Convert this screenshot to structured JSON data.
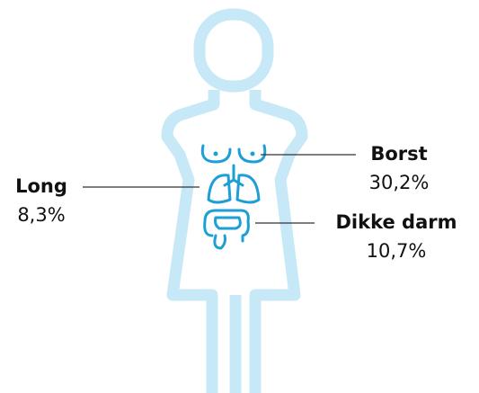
{
  "labels": [
    {
      "name": "Borst",
      "value": "30,2%"
    },
    {
      "name": "Long",
      "value": "8,3%"
    },
    {
      "name": "Dikke darm",
      "value": "10,7%"
    }
  ]
}
